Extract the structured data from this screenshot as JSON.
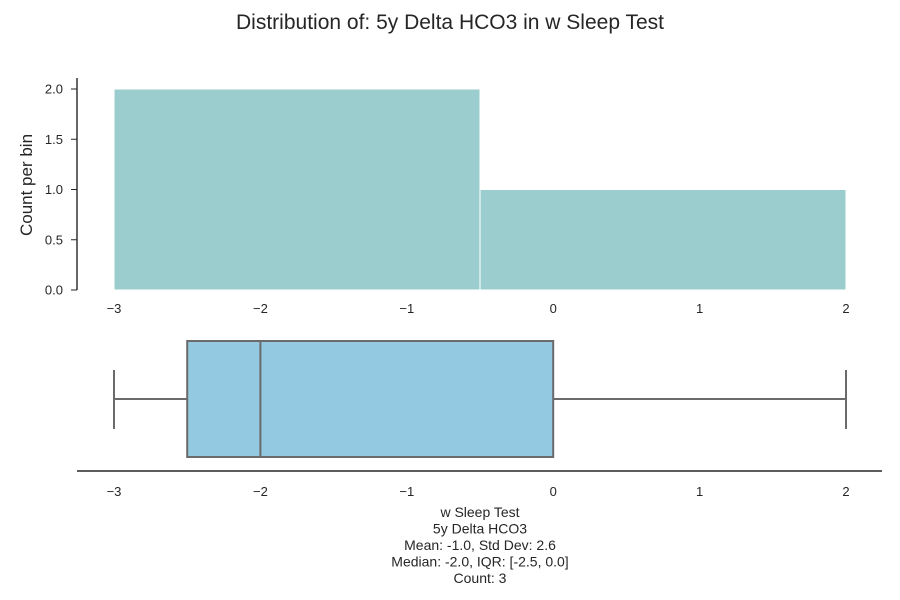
{
  "chart_data": [
    {
      "type": "histogram",
      "title": "Distribution of: 5y Delta HCO3 in w Sleep Test",
      "ylabel": "Count per bin",
      "xlim": [
        -3,
        2
      ],
      "ylim": [
        0,
        2
      ],
      "x_ticks": [
        "−3",
        "−2",
        "−1",
        "0",
        "1",
        "2"
      ],
      "y_ticks": [
        "0.0",
        "0.5",
        "1.0",
        "1.5",
        "2.0"
      ],
      "bins": [
        {
          "start": -3.0,
          "end": -0.5,
          "count": 2
        },
        {
          "start": -0.5,
          "end": 2.0,
          "count": 1
        }
      ],
      "bar_color": "#9bcdce"
    },
    {
      "type": "box",
      "xlim": [
        -3,
        2
      ],
      "x_ticks": [
        "−3",
        "−2",
        "−1",
        "0",
        "1",
        "2"
      ],
      "whisker_low": -3.0,
      "q1": -2.5,
      "median": -2.0,
      "q3": 0.0,
      "whisker_high": 2.0,
      "box_color": "#93c9e1",
      "caption_lines": [
        "w Sleep Test",
        "5y Delta HCO3",
        "Mean: -1.0, Std Dev: 2.6",
        "Median: -2.0, IQR: [-2.5, 0.0]",
        "Count: 3"
      ]
    }
  ]
}
